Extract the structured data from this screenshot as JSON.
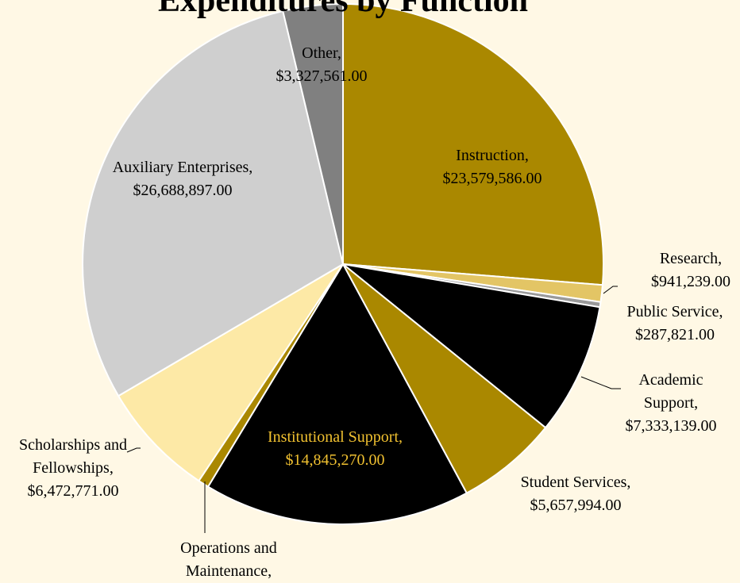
{
  "chart_data": {
    "type": "pie",
    "title": "Expenditures by Function",
    "categories": [
      "Instruction,",
      "Research,",
      "Public Service,",
      "Academic Support,",
      "Student Services,",
      "Institutional Support,",
      "Operations and Maintenance,",
      "Scholarships and Fellowships,",
      "Auxiliary Enterprises,",
      "Other,"
    ],
    "values": [
      23579586,
      941239,
      287821,
      7333139,
      5657994,
      14845270,
      600000,
      6472771,
      26688897,
      3327561
    ],
    "value_labels": [
      "$23,579,586.00",
      "$941,239.00",
      "$287,821.00",
      "$7,333,139.00",
      "$5,657,994.00",
      "$14,845,270.00",
      null,
      "$6,472,771.00",
      "$26,688,897.00",
      "$3,327,561.00"
    ],
    "colors": [
      "#aa8800",
      "#e3c565",
      "#9a9a9a",
      "#000000",
      "#aa8800",
      "#000000",
      "#aa8800",
      "#fde9a6",
      "#cfcfcf",
      "#808080"
    ]
  }
}
